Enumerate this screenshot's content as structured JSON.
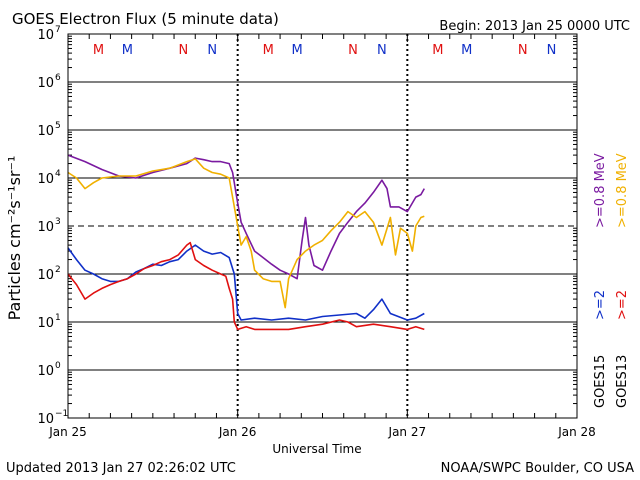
{
  "header": {
    "title": "GOES Electron Flux (5 minute data)",
    "begin": "Begin: 2013 Jan 25 0000 UTC"
  },
  "footer": {
    "updated": "Updated 2013 Jan 27 02:26:02 UTC",
    "source": "NOAA/SWPC Boulder, CO USA"
  },
  "colors": {
    "purple": "#7a1aa0",
    "orange": "#f0b000",
    "blue": "#1030c8",
    "red": "#e01010",
    "grid": "#000000"
  },
  "chart_data": {
    "type": "line",
    "title": "GOES Electron Flux (5 minute data)",
    "xlabel": "Universal Time",
    "ylabel": "Particles cm⁻²s⁻¹sr⁻¹",
    "y_scale": "log",
    "ylim_exp": [
      -1,
      7
    ],
    "y_tick_base": "10",
    "y_ticks_exp": [
      "7",
      "6",
      "5",
      "4",
      "3",
      "2",
      "1",
      "0",
      "−1"
    ],
    "xlim_days": [
      0,
      3
    ],
    "x_ticks": [
      "Jan 25",
      "Jan 26",
      "Jan 27",
      "Jan 28"
    ],
    "dashed_threshold_exp": 3,
    "mn_markers": [
      {
        "day": 0.18,
        "label": "M",
        "color": "red"
      },
      {
        "day": 0.35,
        "label": "M",
        "color": "blue"
      },
      {
        "day": 0.68,
        "label": "N",
        "color": "red"
      },
      {
        "day": 0.85,
        "label": "N",
        "color": "blue"
      },
      {
        "day": 1.18,
        "label": "M",
        "color": "red"
      },
      {
        "day": 1.35,
        "label": "M",
        "color": "blue"
      },
      {
        "day": 1.68,
        "label": "N",
        "color": "red"
      },
      {
        "day": 1.85,
        "label": "N",
        "color": "blue"
      },
      {
        "day": 2.18,
        "label": "M",
        "color": "red"
      },
      {
        "day": 2.35,
        "label": "M",
        "color": "blue"
      },
      {
        "day": 2.68,
        "label": "N",
        "color": "red"
      },
      {
        "day": 2.85,
        "label": "N",
        "color": "blue"
      }
    ],
    "legend": {
      "energy_high": ">=0.8 MeV",
      "energy_low": ">=2",
      "sat15": "GOES15",
      "sat13": "GOES13"
    },
    "series": [
      {
        "name": "GOES15 >=0.8 MeV",
        "color": "purple",
        "points": [
          [
            0,
            30000
          ],
          [
            0.1,
            22000
          ],
          [
            0.2,
            15000
          ],
          [
            0.3,
            11000
          ],
          [
            0.4,
            10000
          ],
          [
            0.5,
            13000
          ],
          [
            0.6,
            16000
          ],
          [
            0.7,
            20000
          ],
          [
            0.75,
            26000
          ],
          [
            0.8,
            24000
          ],
          [
            0.85,
            22000
          ],
          [
            0.9,
            22000
          ],
          [
            0.95,
            20000
          ],
          [
            0.97,
            13000
          ],
          [
            1.0,
            3000
          ],
          [
            1.02,
            1200
          ],
          [
            1.05,
            700
          ],
          [
            1.1,
            300
          ],
          [
            1.15,
            220
          ],
          [
            1.2,
            160
          ],
          [
            1.25,
            120
          ],
          [
            1.3,
            100
          ],
          [
            1.35,
            80
          ],
          [
            1.38,
            500
          ],
          [
            1.4,
            1500
          ],
          [
            1.42,
            400
          ],
          [
            1.45,
            150
          ],
          [
            1.5,
            120
          ],
          [
            1.55,
            300
          ],
          [
            1.6,
            700
          ],
          [
            1.65,
            1200
          ],
          [
            1.7,
            2000
          ],
          [
            1.75,
            3000
          ],
          [
            1.8,
            5000
          ],
          [
            1.85,
            9000
          ],
          [
            1.88,
            6000
          ],
          [
            1.9,
            2500
          ],
          [
            1.95,
            2500
          ],
          [
            2.0,
            2000
          ],
          [
            2.05,
            4000
          ],
          [
            2.08,
            4500
          ],
          [
            2.1,
            6000
          ]
        ]
      },
      {
        "name": "GOES13 >=0.8 MeV",
        "color": "orange",
        "points": [
          [
            0,
            13000
          ],
          [
            0.05,
            10000
          ],
          [
            0.1,
            6000
          ],
          [
            0.15,
            8000
          ],
          [
            0.2,
            10000
          ],
          [
            0.3,
            11000
          ],
          [
            0.4,
            11000
          ],
          [
            0.5,
            14000
          ],
          [
            0.6,
            16000
          ],
          [
            0.7,
            22000
          ],
          [
            0.75,
            25000
          ],
          [
            0.8,
            16000
          ],
          [
            0.85,
            13000
          ],
          [
            0.9,
            12000
          ],
          [
            0.95,
            10000
          ],
          [
            1.0,
            1000
          ],
          [
            1.02,
            400
          ],
          [
            1.05,
            600
          ],
          [
            1.08,
            300
          ],
          [
            1.1,
            120
          ],
          [
            1.15,
            80
          ],
          [
            1.2,
            70
          ],
          [
            1.25,
            70
          ],
          [
            1.28,
            20
          ],
          [
            1.3,
            80
          ],
          [
            1.35,
            200
          ],
          [
            1.4,
            300
          ],
          [
            1.45,
            400
          ],
          [
            1.5,
            500
          ],
          [
            1.55,
            800
          ],
          [
            1.6,
            1200
          ],
          [
            1.65,
            2000
          ],
          [
            1.7,
            1500
          ],
          [
            1.75,
            2000
          ],
          [
            1.8,
            1200
          ],
          [
            1.85,
            400
          ],
          [
            1.9,
            1500
          ],
          [
            1.93,
            250
          ],
          [
            1.96,
            900
          ],
          [
            2.0,
            700
          ],
          [
            2.03,
            300
          ],
          [
            2.05,
            1000
          ],
          [
            2.08,
            1500
          ],
          [
            2.1,
            1600
          ]
        ]
      },
      {
        "name": "GOES15 >=2 MeV",
        "color": "blue",
        "points": [
          [
            0,
            350
          ],
          [
            0.05,
            200
          ],
          [
            0.1,
            120
          ],
          [
            0.15,
            100
          ],
          [
            0.2,
            80
          ],
          [
            0.25,
            70
          ],
          [
            0.3,
            70
          ],
          [
            0.35,
            80
          ],
          [
            0.4,
            110
          ],
          [
            0.45,
            130
          ],
          [
            0.5,
            160
          ],
          [
            0.55,
            150
          ],
          [
            0.6,
            180
          ],
          [
            0.65,
            200
          ],
          [
            0.7,
            300
          ],
          [
            0.75,
            400
          ],
          [
            0.8,
            300
          ],
          [
            0.85,
            260
          ],
          [
            0.9,
            280
          ],
          [
            0.95,
            220
          ],
          [
            0.98,
            100
          ],
          [
            1.0,
            15
          ],
          [
            1.02,
            11
          ],
          [
            1.1,
            12
          ],
          [
            1.2,
            11
          ],
          [
            1.3,
            12
          ],
          [
            1.4,
            11
          ],
          [
            1.5,
            13
          ],
          [
            1.6,
            14
          ],
          [
            1.7,
            15
          ],
          [
            1.75,
            12
          ],
          [
            1.8,
            18
          ],
          [
            1.85,
            30
          ],
          [
            1.9,
            15
          ],
          [
            2.0,
            11
          ],
          [
            2.05,
            12
          ],
          [
            2.1,
            15
          ]
        ]
      },
      {
        "name": "GOES13 >=2 MeV",
        "color": "red",
        "points": [
          [
            0,
            100
          ],
          [
            0.05,
            60
          ],
          [
            0.1,
            30
          ],
          [
            0.15,
            40
          ],
          [
            0.2,
            50
          ],
          [
            0.25,
            60
          ],
          [
            0.3,
            70
          ],
          [
            0.35,
            80
          ],
          [
            0.4,
            100
          ],
          [
            0.45,
            130
          ],
          [
            0.5,
            150
          ],
          [
            0.55,
            180
          ],
          [
            0.6,
            200
          ],
          [
            0.65,
            250
          ],
          [
            0.7,
            400
          ],
          [
            0.72,
            450
          ],
          [
            0.75,
            200
          ],
          [
            0.8,
            150
          ],
          [
            0.85,
            120
          ],
          [
            0.9,
            100
          ],
          [
            0.93,
            90
          ],
          [
            0.95,
            50
          ],
          [
            0.97,
            30
          ],
          [
            0.98,
            10
          ],
          [
            1.0,
            7
          ],
          [
            1.05,
            8
          ],
          [
            1.1,
            7
          ],
          [
            1.2,
            7
          ],
          [
            1.3,
            7
          ],
          [
            1.4,
            8
          ],
          [
            1.5,
            9
          ],
          [
            1.6,
            11
          ],
          [
            1.65,
            10
          ],
          [
            1.7,
            8
          ],
          [
            1.8,
            9
          ],
          [
            1.9,
            8
          ],
          [
            2.0,
            7
          ],
          [
            2.05,
            8
          ],
          [
            2.1,
            7
          ]
        ]
      }
    ]
  }
}
